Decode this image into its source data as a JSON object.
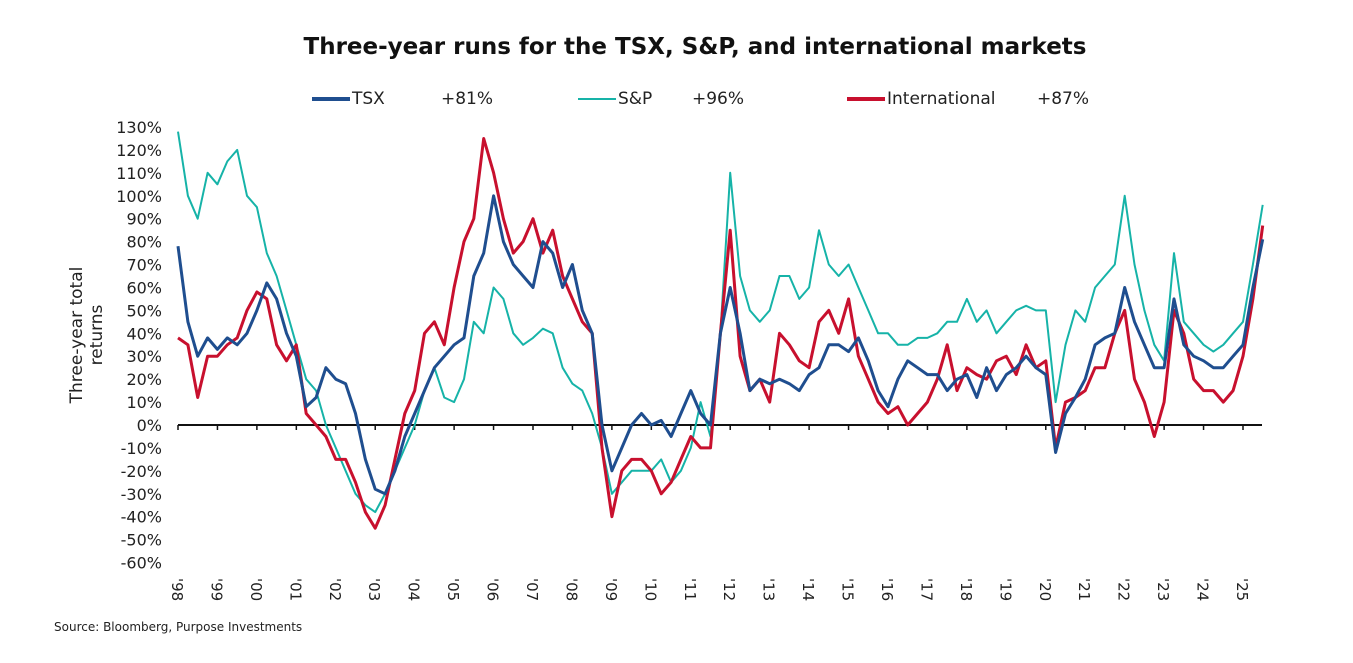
{
  "chart_data": {
    "type": "line",
    "title": "Three-year runs for the TSX, S&P, and international markets",
    "ylabel": "Three-year total returns",
    "xlabel": "",
    "ylim": [
      -60,
      130
    ],
    "y_ticks": [
      "130%",
      "120%",
      "110%",
      "100%",
      "90%",
      "80%",
      "70%",
      "60%",
      "50%",
      "40%",
      "30%",
      "20%",
      "10%",
      "0%",
      "-10%",
      "-20%",
      "-30%",
      "-40%",
      "-50%",
      "-60%"
    ],
    "x_ticks": [
      "'98",
      "'99",
      "'00",
      "'01",
      "'02",
      "'03",
      "'04",
      "'05",
      "'06",
      "'07",
      "'08",
      "'09",
      "'10",
      "'11",
      "'12",
      "'13",
      "'14",
      "'15",
      "'16",
      "'17",
      "'18",
      "'19",
      "'20",
      "'21",
      "'22",
      "'23",
      "'24",
      "'25"
    ],
    "grid": false,
    "legend_position": "top",
    "x": [
      1998,
      1998.25,
      1998.5,
      1998.75,
      1999,
      1999.25,
      1999.5,
      1999.75,
      2000,
      2000.25,
      2000.5,
      2000.75,
      2001,
      2001.25,
      2001.5,
      2001.75,
      2002,
      2002.25,
      2002.5,
      2002.75,
      2003,
      2003.25,
      2003.5,
      2003.75,
      2004,
      2004.25,
      2004.5,
      2004.75,
      2005,
      2005.25,
      2005.5,
      2005.75,
      2006,
      2006.25,
      2006.5,
      2006.75,
      2007,
      2007.25,
      2007.5,
      2007.75,
      2008,
      2008.25,
      2008.5,
      2008.75,
      2009,
      2009.25,
      2009.5,
      2009.75,
      2010,
      2010.25,
      2010.5,
      2010.75,
      2011,
      2011.25,
      2011.5,
      2011.75,
      2012,
      2012.25,
      2012.5,
      2012.75,
      2013,
      2013.25,
      2013.5,
      2013.75,
      2014,
      2014.25,
      2014.5,
      2014.75,
      2015,
      2015.25,
      2015.5,
      2015.75,
      2016,
      2016.25,
      2016.5,
      2016.75,
      2017,
      2017.25,
      2017.5,
      2017.75,
      2018,
      2018.25,
      2018.5,
      2018.75,
      2019,
      2019.25,
      2019.5,
      2019.75,
      2020,
      2020.25,
      2020.5,
      2020.75,
      2021,
      2021.25,
      2021.5,
      2021.75,
      2022,
      2022.25,
      2022.5,
      2022.75,
      2023,
      2023.25,
      2023.5,
      2023.75,
      2024,
      2024.25,
      2024.5,
      2024.75,
      2025,
      2025.25,
      2025.5
    ],
    "series": [
      {
        "name": "TSX",
        "latest_label": "+81%",
        "color": "#1f4e8f",
        "values": [
          78,
          45,
          30,
          38,
          33,
          38,
          35,
          40,
          50,
          62,
          55,
          40,
          30,
          8,
          12,
          25,
          20,
          18,
          5,
          -15,
          -28,
          -30,
          -20,
          -5,
          5,
          15,
          25,
          30,
          35,
          38,
          65,
          75,
          100,
          80,
          70,
          65,
          60,
          80,
          75,
          60,
          70,
          50,
          40,
          0,
          -20,
          -10,
          0,
          5,
          0,
          2,
          -5,
          5,
          15,
          5,
          0,
          40,
          60,
          40,
          15,
          20,
          18,
          20,
          18,
          15,
          22,
          25,
          35,
          35,
          32,
          38,
          28,
          15,
          8,
          20,
          28,
          25,
          22,
          22,
          15,
          20,
          22,
          12,
          25,
          15,
          22,
          25,
          30,
          25,
          22,
          -12,
          5,
          12,
          20,
          35,
          38,
          40,
          60,
          45,
          35,
          25,
          25,
          55,
          35,
          30,
          28,
          25,
          25,
          30,
          35,
          60,
          81
        ]
      },
      {
        "name": "S&P",
        "latest_label": "+96%",
        "color": "#16b3a8",
        "values": [
          128,
          100,
          90,
          110,
          105,
          115,
          120,
          100,
          95,
          75,
          65,
          50,
          35,
          20,
          15,
          0,
          -10,
          -20,
          -30,
          -35,
          -38,
          -30,
          -20,
          -10,
          0,
          15,
          25,
          12,
          10,
          20,
          45,
          40,
          60,
          55,
          40,
          35,
          38,
          42,
          40,
          25,
          18,
          15,
          5,
          -10,
          -30,
          -25,
          -20,
          -20,
          -20,
          -15,
          -25,
          -20,
          -10,
          10,
          -5,
          40,
          110,
          65,
          50,
          45,
          50,
          65,
          65,
          55,
          60,
          85,
          70,
          65,
          70,
          60,
          50,
          40,
          40,
          35,
          35,
          38,
          38,
          40,
          45,
          45,
          55,
          45,
          50,
          40,
          45,
          50,
          52,
          50,
          50,
          10,
          35,
          50,
          45,
          60,
          65,
          70,
          100,
          70,
          50,
          35,
          28,
          75,
          45,
          40,
          35,
          32,
          35,
          40,
          45,
          70,
          96
        ]
      },
      {
        "name": "International",
        "latest_label": "+87%",
        "color": "#c8102e",
        "values": [
          38,
          35,
          12,
          30,
          30,
          35,
          38,
          50,
          58,
          55,
          35,
          28,
          35,
          5,
          0,
          -5,
          -15,
          -15,
          -25,
          -38,
          -45,
          -35,
          -15,
          5,
          15,
          40,
          45,
          35,
          60,
          80,
          90,
          125,
          110,
          90,
          75,
          80,
          90,
          75,
          85,
          65,
          55,
          45,
          40,
          -10,
          -40,
          -20,
          -15,
          -15,
          -20,
          -30,
          -25,
          -15,
          -5,
          -10,
          -10,
          40,
          85,
          30,
          15,
          20,
          10,
          40,
          35,
          28,
          25,
          45,
          50,
          40,
          55,
          30,
          20,
          10,
          5,
          8,
          0,
          5,
          10,
          20,
          35,
          15,
          25,
          22,
          20,
          28,
          30,
          22,
          35,
          25,
          28,
          -10,
          10,
          12,
          15,
          25,
          25,
          40,
          50,
          20,
          10,
          -5,
          10,
          50,
          40,
          20,
          15,
          15,
          10,
          15,
          30,
          55,
          87
        ]
      }
    ]
  },
  "source": "Source: Bloomberg, Purpose Investments"
}
